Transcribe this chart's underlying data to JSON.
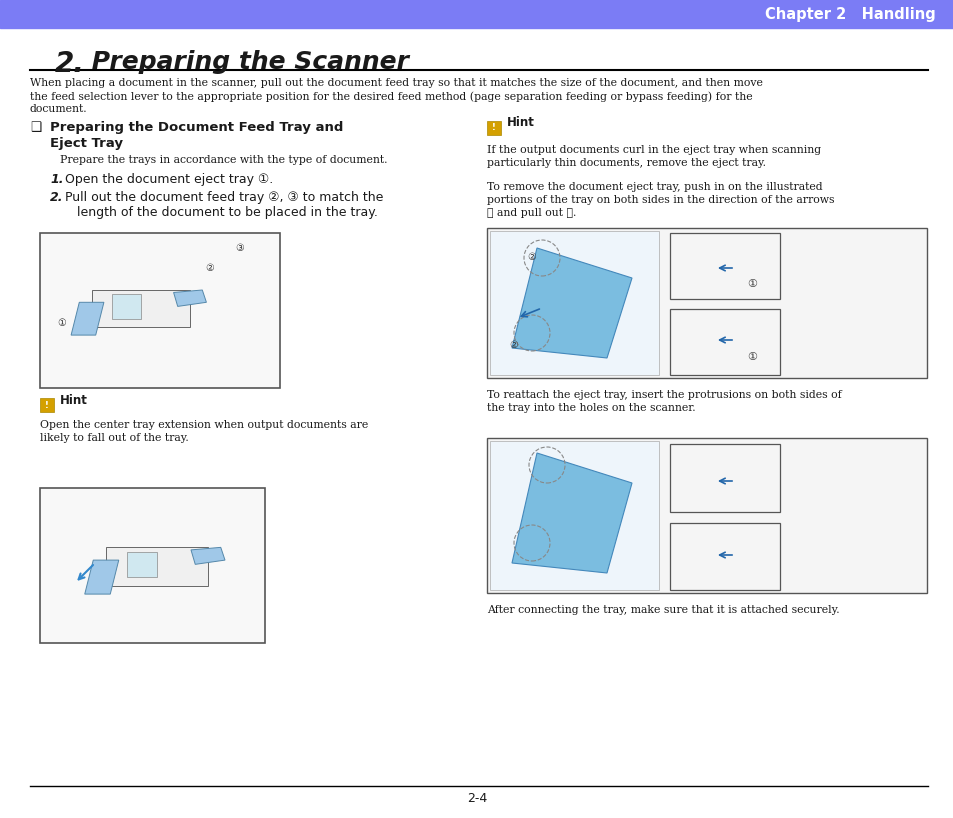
{
  "header_color": "#7b7cf5",
  "header_text": "Chapter 2   Handling",
  "title_number": "2.",
  "title_text": " Preparing the Scanner",
  "body_intro_lines": [
    "When placing a document in the scanner, pull out the document feed tray so that it matches the size of the document, and then move",
    "the feed selection lever to the appropriate position for the desired feed method (page separation feeding or bypass feeding) for the",
    "document."
  ],
  "section_checkbox": "❑",
  "section_title_line1": "Preparing the Document Feed Tray and",
  "section_title_line2": "Eject Tray",
  "section_subtitle": "Prepare the trays in accordance with the type of document.",
  "step1_num": "1.",
  "step1_text": "Open the document eject tray ①.",
  "step2_num": "2.",
  "step2_line1": "Pull out the document feed tray ②, ③ to match the",
  "step2_line2": "length of the document to be placed in the tray.",
  "hint_icon_color": "#d4a000",
  "hint_label": "Hint",
  "hint_left_text1": "Open the center tray extension when output documents are",
  "hint_left_text2": "likely to fall out of the tray.",
  "hint_right_text_lines": [
    "If the output documents curl in the eject tray when scanning",
    "particularly thin documents, remove the eject tray.",
    "",
    "To remove the document eject tray, push in on the illustrated",
    "portions of the tray on both sides in the direction of the arrows",
    "① and pull out ②."
  ],
  "reattach_line1": "To reattach the eject tray, insert the protrusions on both sides of",
  "reattach_line2": "the tray into the holes on the scanner.",
  "after_text": "After connecting the tray, make sure that it is attached securely.",
  "page_number": "2-4",
  "bg_color": "#ffffff",
  "text_color": "#1a1a1a",
  "line_color": "#000000"
}
